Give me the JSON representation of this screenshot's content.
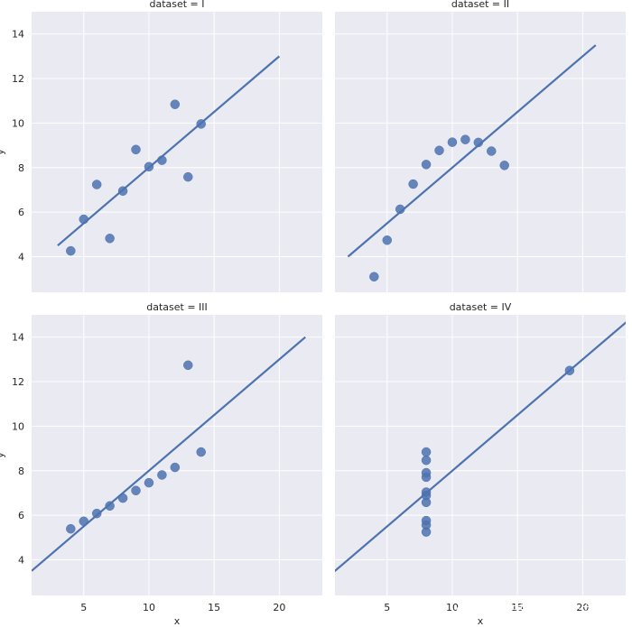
{
  "chart_data": [
    {
      "type": "scatter",
      "title": "dataset = I",
      "xlabel": "",
      "ylabel": "y",
      "xlim": [
        1.0,
        23.3
      ],
      "ylim": [
        2.4,
        15.0
      ],
      "xticks": [
        5,
        10,
        15,
        20
      ],
      "yticks": [
        4,
        6,
        8,
        10,
        12,
        14
      ],
      "grid": true,
      "points": {
        "x": [
          10,
          8,
          13,
          9,
          11,
          14,
          6,
          4,
          12,
          7,
          5
        ],
        "y": [
          8.04,
          6.95,
          7.58,
          8.81,
          8.33,
          9.96,
          7.24,
          4.26,
          10.84,
          4.82,
          5.68
        ]
      },
      "fit_line": {
        "x": [
          3,
          20
        ],
        "y": [
          4.5,
          13.0
        ]
      }
    },
    {
      "type": "scatter",
      "title": "dataset = II",
      "xlabel": "",
      "ylabel": "",
      "xlim": [
        1.0,
        23.3
      ],
      "ylim": [
        2.4,
        15.0
      ],
      "xticks": [
        5,
        10,
        15,
        20
      ],
      "yticks": [
        4,
        6,
        8,
        10,
        12,
        14
      ],
      "grid": true,
      "points": {
        "x": [
          10,
          8,
          13,
          9,
          11,
          14,
          6,
          4,
          12,
          7,
          5
        ],
        "y": [
          9.14,
          8.14,
          8.74,
          8.77,
          9.26,
          8.1,
          6.13,
          3.1,
          9.13,
          7.26,
          4.74
        ]
      },
      "fit_line": {
        "x": [
          2,
          21
        ],
        "y": [
          4.0,
          13.5
        ]
      }
    },
    {
      "type": "scatter",
      "title": "dataset = III",
      "xlabel": "x",
      "ylabel": "y",
      "xlim": [
        1.0,
        23.3
      ],
      "ylim": [
        2.4,
        15.0
      ],
      "xticks": [
        5,
        10,
        15,
        20
      ],
      "yticks": [
        4,
        6,
        8,
        10,
        12,
        14
      ],
      "grid": true,
      "points": {
        "x": [
          10,
          8,
          13,
          9,
          11,
          14,
          6,
          4,
          12,
          7,
          5
        ],
        "y": [
          7.46,
          6.77,
          12.74,
          7.11,
          7.81,
          8.84,
          6.08,
          5.39,
          8.15,
          6.42,
          5.73
        ]
      },
      "fit_line": {
        "x": [
          1,
          22
        ],
        "y": [
          3.5,
          14.0
        ]
      }
    },
    {
      "type": "scatter",
      "title": "dataset = IV",
      "xlabel": "x",
      "ylabel": "",
      "xlim": [
        1.0,
        23.3
      ],
      "ylim": [
        2.4,
        15.0
      ],
      "xticks": [
        5,
        10,
        15,
        20
      ],
      "yticks": [
        4,
        6,
        8,
        10,
        12,
        14
      ],
      "grid": true,
      "points": {
        "x": [
          8,
          8,
          8,
          8,
          8,
          8,
          8,
          19,
          8,
          8,
          8
        ],
        "y": [
          6.58,
          5.76,
          7.71,
          8.84,
          8.47,
          7.04,
          5.25,
          12.5,
          5.56,
          7.91,
          6.89
        ]
      },
      "fit_line": {
        "x": [
          0,
          24
        ],
        "y": [
          3.0,
          15.0
        ]
      }
    }
  ],
  "colors": {
    "panel_bg": "#EAEAF2",
    "grid": "#FFFFFF",
    "series": "#4C72B0",
    "text": "#262626"
  },
  "watermark": "CSDN @苏州程序大白"
}
